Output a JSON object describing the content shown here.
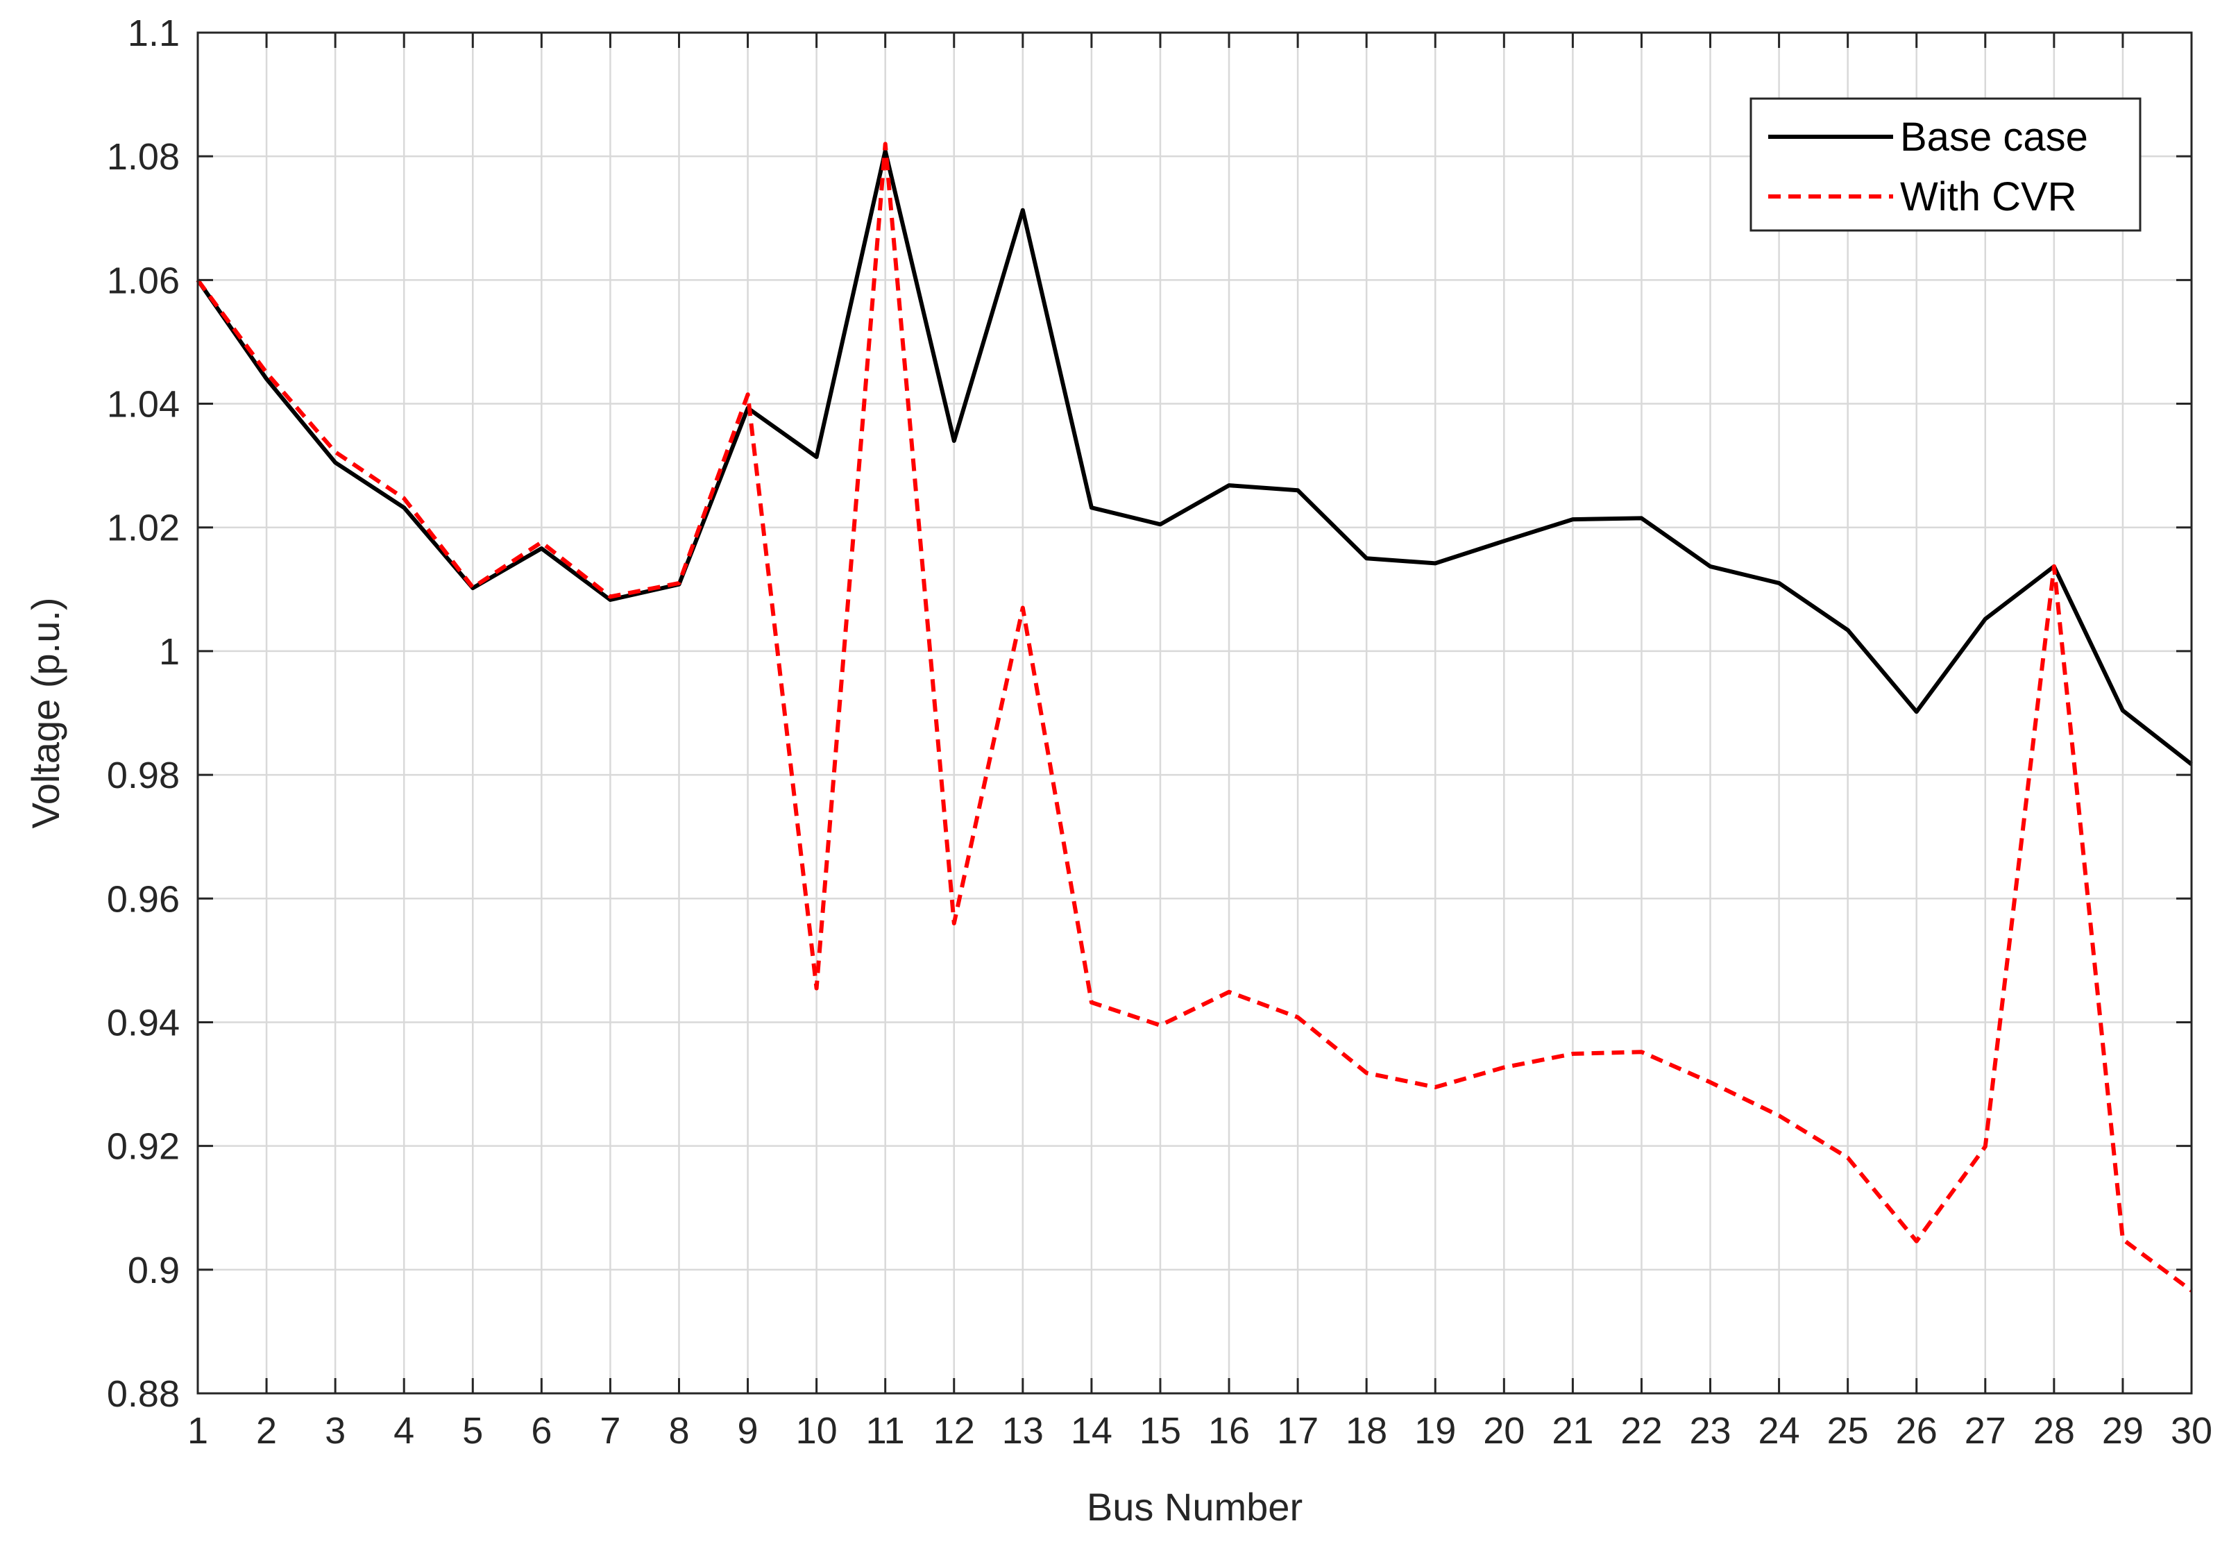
{
  "chart_data": {
    "type": "line",
    "title": "",
    "xlabel": "Bus Number",
    "ylabel": "Voltage (p.u.)",
    "xlim": [
      1,
      30
    ],
    "ylim": [
      0.88,
      1.1
    ],
    "x_ticks": [
      1,
      2,
      3,
      4,
      5,
      6,
      7,
      8,
      9,
      10,
      11,
      12,
      13,
      14,
      15,
      16,
      17,
      18,
      19,
      20,
      21,
      22,
      23,
      24,
      25,
      26,
      27,
      28,
      29,
      30
    ],
    "y_ticks": [
      0.88,
      0.9,
      0.92,
      0.94,
      0.96,
      0.98,
      1.0,
      1.02,
      1.04,
      1.06,
      1.08,
      1.1
    ],
    "y_tick_labels": [
      "0.88",
      "0.9",
      "0.92",
      "0.94",
      "0.96",
      "0.98",
      "1",
      "1.02",
      "1.04",
      "1.06",
      "1.08",
      "1.1"
    ],
    "grid": true,
    "legend_position": "top-right",
    "x": [
      1,
      2,
      3,
      4,
      5,
      6,
      7,
      8,
      9,
      10,
      11,
      12,
      13,
      14,
      15,
      16,
      17,
      18,
      19,
      20,
      21,
      22,
      23,
      24,
      25,
      26,
      27,
      28,
      29,
      30
    ],
    "series": [
      {
        "name": "Base case",
        "color": "#000000",
        "line_style": "solid",
        "values": [
          1.06,
          1.044,
          1.0305,
          1.0232,
          1.0102,
          1.0166,
          1.0083,
          1.0108,
          1.0393,
          1.0314,
          1.0809,
          1.034,
          1.0713,
          1.0232,
          1.0205,
          1.0268,
          1.026,
          1.015,
          1.0142,
          1.0178,
          1.0213,
          1.0215,
          1.0137,
          1.011,
          1.0034,
          0.9902,
          1.0052,
          1.0137,
          0.9904,
          0.9817
        ]
      },
      {
        "name": "With CVR",
        "color": "#ff0000",
        "line_style": "dashed",
        "values": [
          1.06,
          1.045,
          1.0322,
          1.0247,
          1.0103,
          1.0176,
          1.0088,
          1.011,
          1.0415,
          0.9455,
          1.082,
          0.956,
          1.007,
          0.9432,
          0.9395,
          0.9449,
          0.9408,
          0.9318,
          0.9295,
          0.9327,
          0.9349,
          0.9352,
          0.9303,
          0.9249,
          0.9181,
          0.9046,
          0.9199,
          1.0137,
          0.9049,
          0.8966
        ]
      }
    ]
  }
}
